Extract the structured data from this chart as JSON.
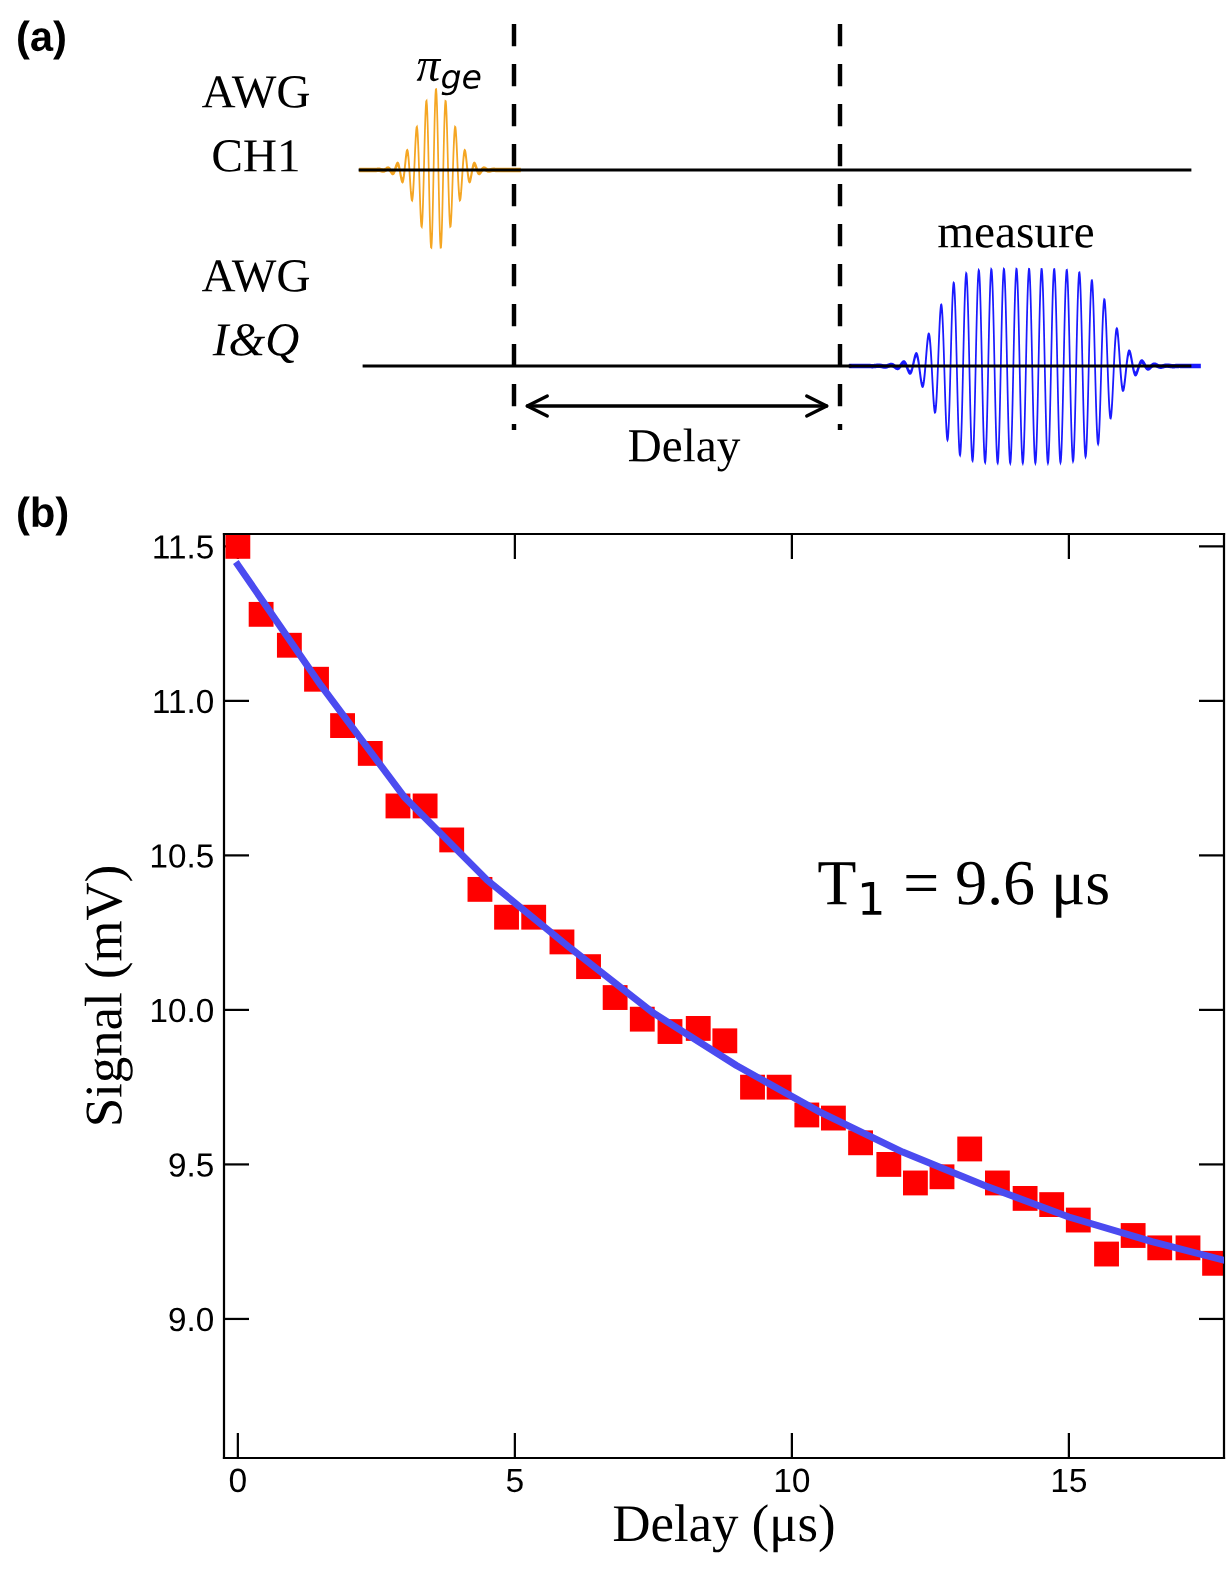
{
  "chart_data": [
    {
      "type": "other",
      "annotations": [
        "(a)",
        "AWG",
        "CH1",
        "π$_{ge}$",
        "AWG",
        "I&Q",
        "measure",
        "Delay"
      ]
    },
    {
      "type": "scatter",
      "xlabel": "Delay (μs)",
      "ylabel": "Signal (mV)",
      "annotations": [
        "(b)",
        "T$_{1}$ = 9.6 μs"
      ],
      "xlim": [
        -0.25,
        17.8
      ],
      "xticks": [
        0,
        5,
        10,
        15
      ],
      "ylim": [
        8.55,
        11.54
      ],
      "yticks": [
        {
          "value": 9.0,
          "label": "9.0"
        },
        {
          "value": 9.5,
          "label": "9.5"
        },
        {
          "value": 10.0,
          "label": "10.0"
        },
        {
          "value": 10.5,
          "label": "10.5"
        },
        {
          "value": 11.0,
          "label": "11.0"
        },
        {
          "value": 11.5,
          "label": "11.5"
        }
      ],
      "tick_labels": "xy",
      "grid": false,
      "series": [
        {
          "type": "scatter",
          "marker": "square",
          "color": "#ff0000",
          "x": [
            0.0,
            0.42,
            0.93,
            1.42,
            1.89,
            2.39,
            2.89,
            3.38,
            3.86,
            4.37,
            4.85,
            5.34,
            5.85,
            6.33,
            6.81,
            7.3,
            7.8,
            8.31,
            8.79,
            9.29,
            9.77,
            10.27,
            10.75,
            11.24,
            11.75,
            12.23,
            12.71,
            13.21,
            13.71,
            14.21,
            14.69,
            15.17,
            15.68,
            16.16,
            16.64,
            17.15,
            17.63
          ],
          "values": [
            11.5,
            11.28,
            11.18,
            11.07,
            10.92,
            10.83,
            10.66,
            10.66,
            10.55,
            10.39,
            10.3,
            10.3,
            10.22,
            10.14,
            10.04,
            9.97,
            9.93,
            9.94,
            9.9,
            9.75,
            9.75,
            9.66,
            9.65,
            9.57,
            9.5,
            9.44,
            9.46,
            9.55,
            9.44,
            9.39,
            9.37,
            9.32,
            9.21,
            9.27,
            9.23,
            9.23,
            9.18
          ]
        },
        {
          "type": "line",
          "marker": "none",
          "line_style": "solid",
          "color": "#4b4bf0",
          "x": [
            0,
            1.5,
            3,
            4.5,
            6,
            7.5,
            9,
            10.5,
            12,
            13.5,
            15,
            16.5,
            17.8
          ],
          "values": [
            11.44,
            11.05,
            10.69,
            10.42,
            10.2,
            9.99,
            9.82,
            9.67,
            9.54,
            9.43,
            9.33,
            9.25,
            9.19
          ]
        }
      ]
    }
  ]
}
